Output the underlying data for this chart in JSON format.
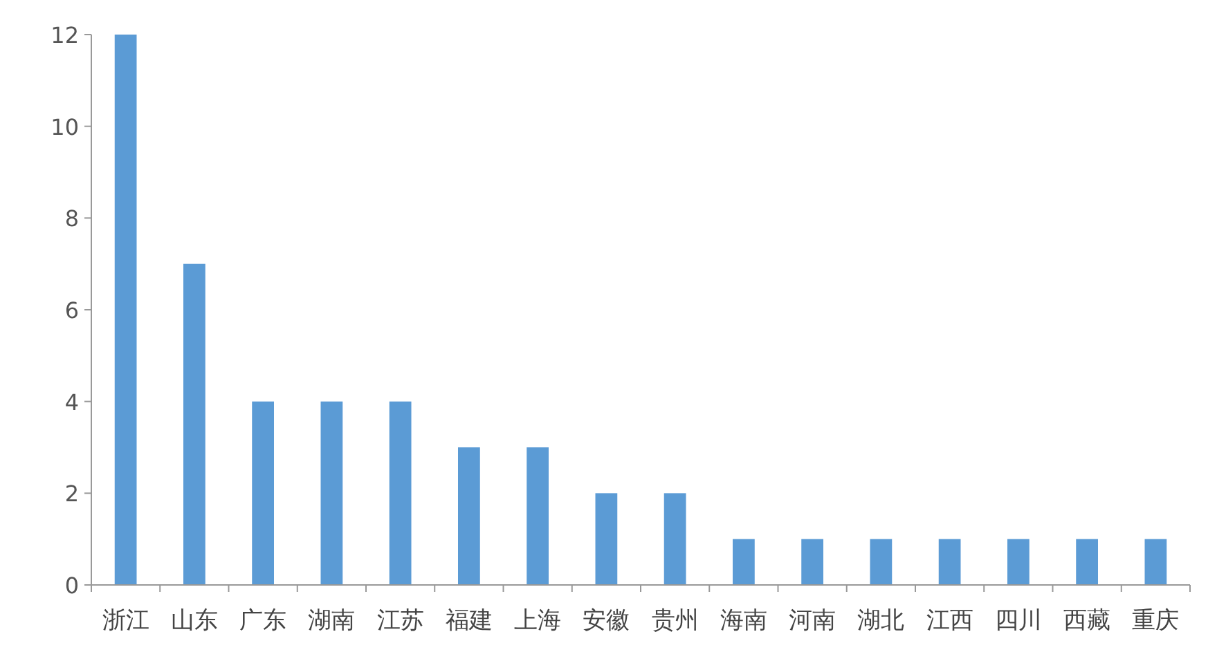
{
  "chart_data": {
    "type": "bar",
    "categories": [
      "浙江",
      "山东",
      "广东",
      "湖南",
      "江苏",
      "福建",
      "上海",
      "安徽",
      "贵州",
      "海南",
      "河南",
      "湖北",
      "江西",
      "四川",
      "西藏",
      "重庆"
    ],
    "values": [
      12,
      7,
      4,
      4,
      4,
      3,
      3,
      2,
      2,
      1,
      1,
      1,
      1,
      1,
      1,
      1
    ],
    "color": "#5b9bd5",
    "ylim": [
      0,
      12
    ],
    "yticks": [
      0,
      2,
      4,
      6,
      8,
      10,
      12
    ],
    "grid": false
  }
}
